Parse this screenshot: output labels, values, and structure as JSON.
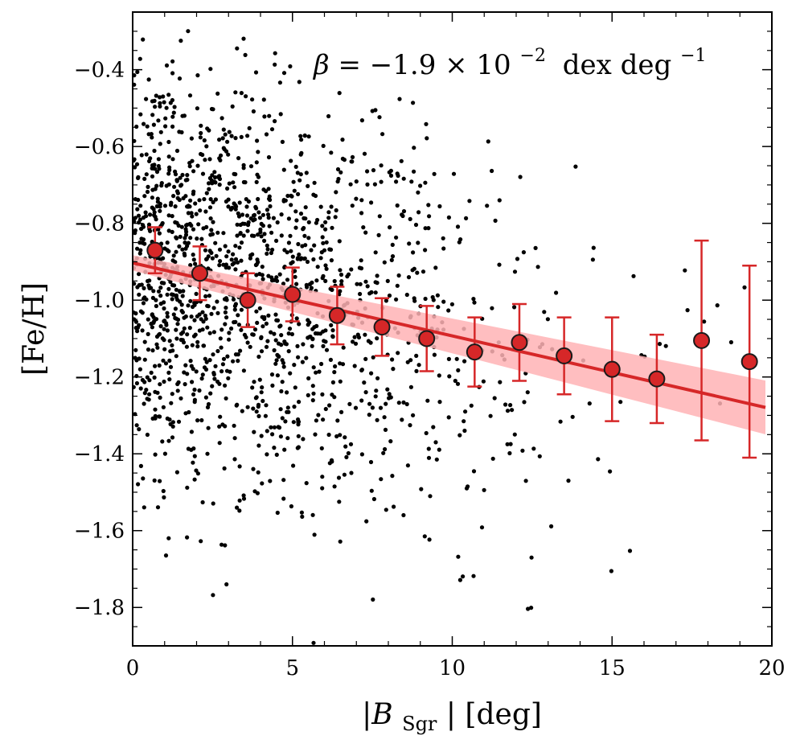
{
  "chart_data": {
    "type": "scatter",
    "xlabel_text": "|B",
    "xlabel_sub": "Sgr",
    "xlabel_rest": "| [deg]",
    "ylabel": "[Fe/H]",
    "xlim": [
      0,
      20
    ],
    "ylim": [
      -1.9,
      -0.25
    ],
    "xticks": [
      0,
      5,
      10,
      15,
      20
    ],
    "xtick_labels": [
      "0",
      "5",
      "10",
      "15",
      "20"
    ],
    "yticks": [
      -0.4,
      -0.6,
      -0.8,
      -1.0,
      -1.2,
      -1.4,
      -1.6,
      -1.8
    ],
    "ytick_labels": [
      "−0.4",
      "−0.6",
      "−0.8",
      "−1.0",
      "−1.2",
      "−1.4",
      "−1.6",
      "−1.8"
    ],
    "annotation": {
      "beta": "β",
      "equals": "= −1.9 × 10",
      "exp": "−2",
      "unit": "dex deg",
      "unit_exp": "−1"
    },
    "fit": {
      "slope": -0.019,
      "intercept": -0.903,
      "band_halfwidth_start": 0.02,
      "band_halfwidth_end": 0.07,
      "x_range": [
        0,
        19.8
      ]
    },
    "binned": {
      "x": [
        0.7,
        2.1,
        3.6,
        5.0,
        6.4,
        7.8,
        9.2,
        10.7,
        12.1,
        13.5,
        15.0,
        16.4,
        17.8,
        19.3
      ],
      "y": [
        -0.87,
        -0.93,
        -1.0,
        -0.985,
        -1.04,
        -1.07,
        -1.1,
        -1.135,
        -1.11,
        -1.145,
        -1.18,
        -1.205,
        -1.105,
        -1.16
      ],
      "err": [
        0.06,
        0.07,
        0.07,
        0.07,
        0.075,
        0.075,
        0.085,
        0.09,
        0.1,
        0.1,
        0.135,
        0.115,
        0.26,
        0.25
      ]
    },
    "scatter": {
      "n": 1600,
      "seed": 12345
    },
    "colors": {
      "fit_line": "#d62728",
      "band": "#ffb3b5",
      "marker": "#d62728",
      "points": "#000000"
    }
  }
}
